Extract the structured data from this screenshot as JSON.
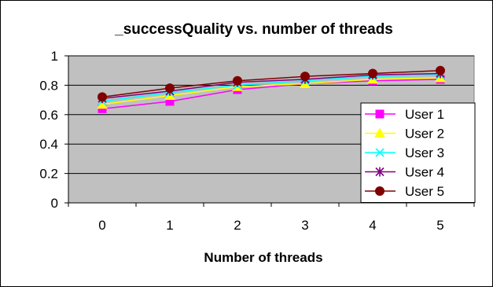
{
  "chart_data": {
    "type": "line",
    "title": "_successQuality vs. number of threads",
    "xlabel": "Number of threads",
    "ylabel": "",
    "categories": [
      "0",
      "1",
      "2",
      "3",
      "4",
      "5"
    ],
    "ylim": [
      0,
      1
    ],
    "yticks": [
      "0",
      "0.2",
      "0.4",
      "0.6",
      "0.8",
      "1"
    ],
    "grid": "horizontal",
    "legend_position": "right",
    "plot_background": "#c0c0c0",
    "series": [
      {
        "name": "User 1",
        "color": "#ff00ff",
        "marker": "square",
        "values": [
          0.64,
          0.69,
          0.77,
          0.81,
          0.83,
          0.84
        ]
      },
      {
        "name": "User 2",
        "color": "#ffff00",
        "marker": "triangle",
        "values": [
          0.67,
          0.73,
          0.79,
          0.81,
          0.84,
          0.85
        ]
      },
      {
        "name": "User 3",
        "color": "#00ffff",
        "marker": "x",
        "values": [
          0.69,
          0.75,
          0.8,
          0.83,
          0.86,
          0.87
        ]
      },
      {
        "name": "User 4",
        "color": "#800080",
        "marker": "star",
        "values": [
          0.71,
          0.76,
          0.82,
          0.84,
          0.87,
          0.88
        ]
      },
      {
        "name": "User 5",
        "color": "#800000",
        "marker": "circle",
        "values": [
          0.72,
          0.78,
          0.83,
          0.86,
          0.88,
          0.9
        ]
      }
    ]
  }
}
